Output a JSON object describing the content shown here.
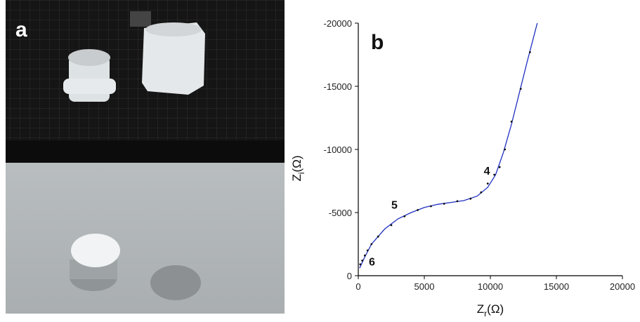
{
  "panels": {
    "a": "a"
  },
  "chart_data": {
    "type": "line",
    "panel_label": "b",
    "x_label": {
      "symbol": "Z",
      "subscript": "r",
      "unit": "(Ω)"
    },
    "y_label": {
      "symbol": "Z",
      "subscript": "i",
      "unit": "(Ω)"
    },
    "xlim": [
      0,
      20000
    ],
    "ylim": [
      0,
      -20000
    ],
    "xticks": [
      0,
      5000,
      10000,
      15000,
      20000
    ],
    "yticks": [
      0,
      -5000,
      -10000,
      -15000,
      -20000
    ],
    "series": [
      {
        "kind": "line",
        "color": "#1f2fbf",
        "x": [
          100,
          500,
          1000,
          2000,
          3000,
          4000,
          5000,
          6000,
          7000,
          8000,
          9000,
          9800,
          10400,
          11000,
          11600,
          12200,
          12800,
          13550
        ],
        "values": [
          -600,
          -1500,
          -2500,
          -3700,
          -4500,
          -5000,
          -5400,
          -5650,
          -5800,
          -5950,
          -6300,
          -7000,
          -8000,
          -9800,
          -12000,
          -14500,
          -17000,
          -20000
        ]
      },
      {
        "kind": "points",
        "color": "#111111",
        "x": [
          150,
          300,
          500,
          700,
          1000,
          1500,
          2500,
          3500,
          4500,
          5500,
          6500,
          7500,
          8500,
          9300,
          9800,
          10300,
          10700,
          11100,
          11600,
          12300,
          13000
        ],
        "values": [
          -900,
          -1200,
          -1600,
          -2000,
          -2500,
          -3100,
          -4000,
          -4700,
          -5200,
          -5500,
          -5700,
          -5900,
          -6100,
          -6600,
          -7300,
          -8000,
          -8600,
          -10000,
          -12200,
          -14800,
          -17700
        ]
      }
    ],
    "annotations": [
      {
        "text": "4",
        "x": 9500,
        "y": -8000
      },
      {
        "text": "5",
        "x": 2500,
        "y": -5300
      },
      {
        "text": "6",
        "x": 800,
        "y": -800
      }
    ]
  }
}
